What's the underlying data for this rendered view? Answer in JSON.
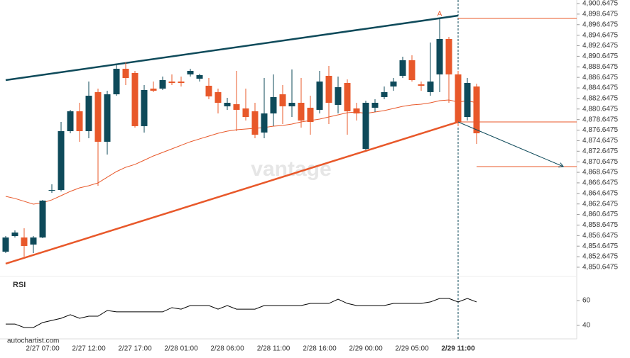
{
  "chart_data": {
    "type": "candlestick",
    "source": "autochartist.com",
    "watermark": "vantage",
    "up_color": "#0e4a5a",
    "down_color": "#e8582a",
    "categories": [
      null,
      null,
      null,
      null,
      "2/27 07:00",
      null,
      null,
      null,
      null,
      "2/27 12:00",
      null,
      null,
      null,
      null,
      "2/27 17:00",
      null,
      null,
      null,
      null,
      "2/28 01:00",
      null,
      null,
      null,
      null,
      "2/28 06:00",
      null,
      null,
      null,
      null,
      "2/28 11:00",
      null,
      null,
      null,
      null,
      "2/28 16:00",
      null,
      null,
      null,
      null,
      "2/29 00:00",
      null,
      null,
      null,
      null,
      "2/29 05:00",
      null,
      null,
      null,
      null,
      "2/29 11:00",
      null,
      null
    ],
    "signal_index": 49,
    "candles": {
      "open": [
        4853.6,
        4856.56,
        4856.29,
        4854.95,
        4856.29,
        4865.16,
        4865.3,
        4876.45,
        4880.22,
        4876.45,
        4883.85,
        4874.44,
        4883.44,
        4888.28,
        4887.48,
        4877.4,
        4884.52,
        4884.52,
        4885.86,
        4885.86,
        4887.21,
        4886.4,
        4885.06,
        4883.85,
        4881.16,
        4881.56,
        4880.76,
        4880.22,
        4876.19,
        4879.81,
        4883.44,
        4881.16,
        4881.83,
        4880.89,
        4880.49,
        4886.94,
        4881.43,
        4885.59,
        4880.76,
        4873.09,
        4880.89,
        4882.91,
        4884.92,
        4886.94,
        4889.9,
        4885.33,
        4883.85,
        4887.21,
        4893.93,
        4887.21,
        4879.14,
        4884.92
      ],
      "high": [
        4856.56,
        4857.64,
        4858.04,
        4856.56,
        4863.42,
        4866.37,
        4878.2,
        4880.49,
        4881.83,
        4885.86,
        4884.52,
        4884.12,
        4888.95,
        4889.49,
        4887.88,
        4885.19,
        4885.86,
        4886.8,
        4887.21,
        4886.8,
        4888.28,
        4887.34,
        4886.53,
        4884.52,
        4882.77,
        4887.88,
        4884.52,
        4881.83,
        4886.53,
        4887.21,
        4885.19,
        4888.15,
        4886.53,
        4883.17,
        4887.88,
        4888.82,
        4886.8,
        4886.27,
        4881.83,
        4882.23,
        4882.5,
        4884.92,
        4886.53,
        4890.57,
        4890.84,
        4885.86,
        4893.26,
        4897.96,
        4894.33,
        4887.88,
        4886.53,
        4885.46
      ],
      "low": [
        4853.34,
        4856.29,
        4852.66,
        4853.34,
        4856.16,
        4864.76,
        4865.03,
        4876.05,
        4874.44,
        4875.11,
        4866.1,
        4872.02,
        4883.17,
        4885.19,
        4877.13,
        4876.19,
        4883.85,
        4884.25,
        4885.19,
        4884.92,
        4886.8,
        4885.86,
        4882.5,
        4879.81,
        4880.49,
        4876.45,
        4878.47,
        4875.11,
        4875.11,
        4877.4,
        4877.8,
        4879.14,
        4877.13,
        4875.78,
        4879.81,
        4877.8,
        4879.81,
        4875.78,
        4878.47,
        4872.82,
        4880.08,
        4882.5,
        4884.12,
        4886.53,
        4885.86,
        4884.12,
        4883.17,
        4883.85,
        4881.83,
        4877.4,
        4878.47,
        4874.03
      ],
      "close": [
        4856.29,
        4857.23,
        4854.68,
        4856.29,
        4863.28,
        4865.3,
        4876.45,
        4880.22,
        4876.45,
        4883.17,
        4874.44,
        4883.44,
        4888.28,
        4886.53,
        4877.4,
        4884.25,
        4884.12,
        4886.13,
        4885.59,
        4885.59,
        4887.88,
        4887.07,
        4883.04,
        4881.83,
        4881.83,
        4880.49,
        4879.14,
        4875.78,
        4879.81,
        4882.91,
        4881.16,
        4881.83,
        4878.47,
        4878.2,
        4885.86,
        4881.83,
        4884.79,
        4880.22,
        4879.81,
        4881.83,
        4881.83,
        4883.85,
        4885.86,
        4889.9,
        4886.13,
        4885.06,
        4885.86,
        4893.93,
        4887.21,
        4878.2,
        4885.59,
        4876.05
      ]
    },
    "moving_average": {
      "color": "#e8582a",
      "values": [
        4864.09,
        4863.69,
        4863.15,
        4862.61,
        4862.88,
        4863.42,
        4864.22,
        4865.03,
        4865.7,
        4866.1,
        4866.64,
        4867.72,
        4868.79,
        4869.6,
        4870.14,
        4870.94,
        4871.75,
        4872.42,
        4873.09,
        4873.77,
        4874.44,
        4874.98,
        4875.51,
        4876.05,
        4876.45,
        4876.72,
        4876.86,
        4876.99,
        4877.13,
        4877.4,
        4877.53,
        4877.8,
        4878.2,
        4878.47,
        4878.74,
        4879.14,
        4879.55,
        4879.95,
        4880.08,
        4879.81,
        4880.08,
        4880.35,
        4880.76,
        4881.16,
        4881.43,
        4881.56,
        4881.83,
        4882.23,
        4882.37,
        4881.97,
        4882.23,
        4881.83
      ]
    },
    "resistance": {
      "color": "#0e4a5a",
      "x": [
        0,
        49
      ],
      "values": [
        4886.13,
        4898.36
      ]
    },
    "support": {
      "color": "#e8582a",
      "x": [
        0,
        49
      ],
      "values": [
        4851.32,
        4878.2
      ]
    },
    "levels": [
      {
        "value": 4897.83,
        "from": 49
      },
      {
        "value": 4878.2,
        "from": 49
      },
      {
        "value": 4869.73,
        "from": 51
      }
    ],
    "arrow": {
      "color": "#0e4a5a",
      "x": [
        49,
        60.4
      ],
      "values": [
        4878.2,
        4869.73
      ]
    },
    "annotation": {
      "text": "A",
      "x": 47,
      "value": 4898.63
    },
    "ylim": [
      4850.24,
      4901.32
    ],
    "yticks": [
      {
        "value": 4900.6475,
        "label": "4,900.6475"
      },
      {
        "value": 4898.6475,
        "label": "4,898.6475"
      },
      {
        "value": 4896.6475,
        "label": "4,896.6475"
      },
      {
        "value": 4894.6475,
        "label": "4,894.6475"
      },
      {
        "value": 4892.6475,
        "label": "4,892.6475"
      },
      {
        "value": 4890.6475,
        "label": "4,890.6475"
      },
      {
        "value": 4888.6475,
        "label": "4,888.6475"
      },
      {
        "value": 4886.6475,
        "label": "4,886.6475"
      },
      {
        "value": 4884.6475,
        "label": "4,884.6475"
      },
      {
        "value": 4882.6475,
        "label": "4,882.6475"
      },
      {
        "value": 4880.6475,
        "label": "4,880.6475"
      },
      {
        "value": 4878.6475,
        "label": "4,878.6475"
      },
      {
        "value": 4876.6475,
        "label": "4,876.6475"
      },
      {
        "value": 4874.6475,
        "label": "4,874.6475"
      },
      {
        "value": 4872.6475,
        "label": "4,872.6475"
      },
      {
        "value": 4870.6475,
        "label": "4,870.6475"
      },
      {
        "value": 4868.6475,
        "label": "4,868.6475"
      },
      {
        "value": 4866.6475,
        "label": "4,866.6475"
      },
      {
        "value": 4864.6475,
        "label": "4,864.6475"
      },
      {
        "value": 4862.6475,
        "label": "4,862.6475"
      },
      {
        "value": 4860.6475,
        "label": "4,860.6475"
      },
      {
        "value": 4858.6475,
        "label": "4,858.6475"
      },
      {
        "value": 4856.6475,
        "label": "4,856.6475"
      },
      {
        "value": 4854.6475,
        "label": "4,854.6475"
      },
      {
        "value": 4852.6475,
        "label": "4,852.6475"
      },
      {
        "value": 4850.6475,
        "label": "4,850.6475"
      }
    ],
    "rsi": {
      "label": "RSI",
      "color": "#000000",
      "ylim": [
        30,
        75
      ],
      "yticks": [
        60,
        40
      ],
      "values": [
        41.1,
        41.1,
        38.3,
        38.3,
        42.3,
        44,
        45.7,
        48.6,
        45.7,
        47.4,
        47.4,
        52,
        50.9,
        50.9,
        50.9,
        50.9,
        50.9,
        50.9,
        54.3,
        53.1,
        56,
        56,
        56,
        53.1,
        56,
        53.1,
        53.1,
        53.1,
        56,
        56,
        56,
        56,
        56,
        57.7,
        57.7,
        57.7,
        61.1,
        57.7,
        56,
        56,
        56,
        56,
        57.7,
        57.7,
        57.7,
        57.7,
        58.9,
        61.7,
        61.7,
        58.9,
        61.7,
        58.9
      ]
    }
  }
}
